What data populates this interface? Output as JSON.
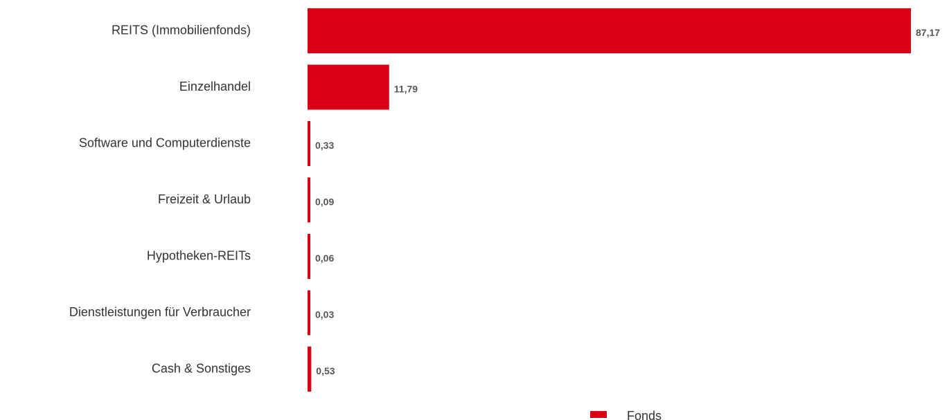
{
  "chart_data": {
    "type": "bar",
    "orientation": "horizontal",
    "categories": [
      "REITS (Immobilienfonds)",
      "Einzelhandel",
      "Software und Computerdienste",
      "Freizeit & Urlaub",
      "Hypotheken-REITs",
      "Dienstleistungen für Verbraucher",
      "Cash & Sonstiges"
    ],
    "series": [
      {
        "name": "Fonds",
        "values": [
          87.17,
          11.79,
          0.33,
          0.09,
          0.06,
          0.03,
          0.53
        ],
        "value_labels": [
          "87,17",
          "11,79",
          "0,33",
          "0,09",
          "0,06",
          "0,03",
          "0,53"
        ],
        "color": "#d90013"
      }
    ],
    "title": "",
    "xlabel": "",
    "ylabel": "",
    "xlim": [
      0,
      87.17
    ],
    "grid": false,
    "legend_position": "bottom"
  }
}
